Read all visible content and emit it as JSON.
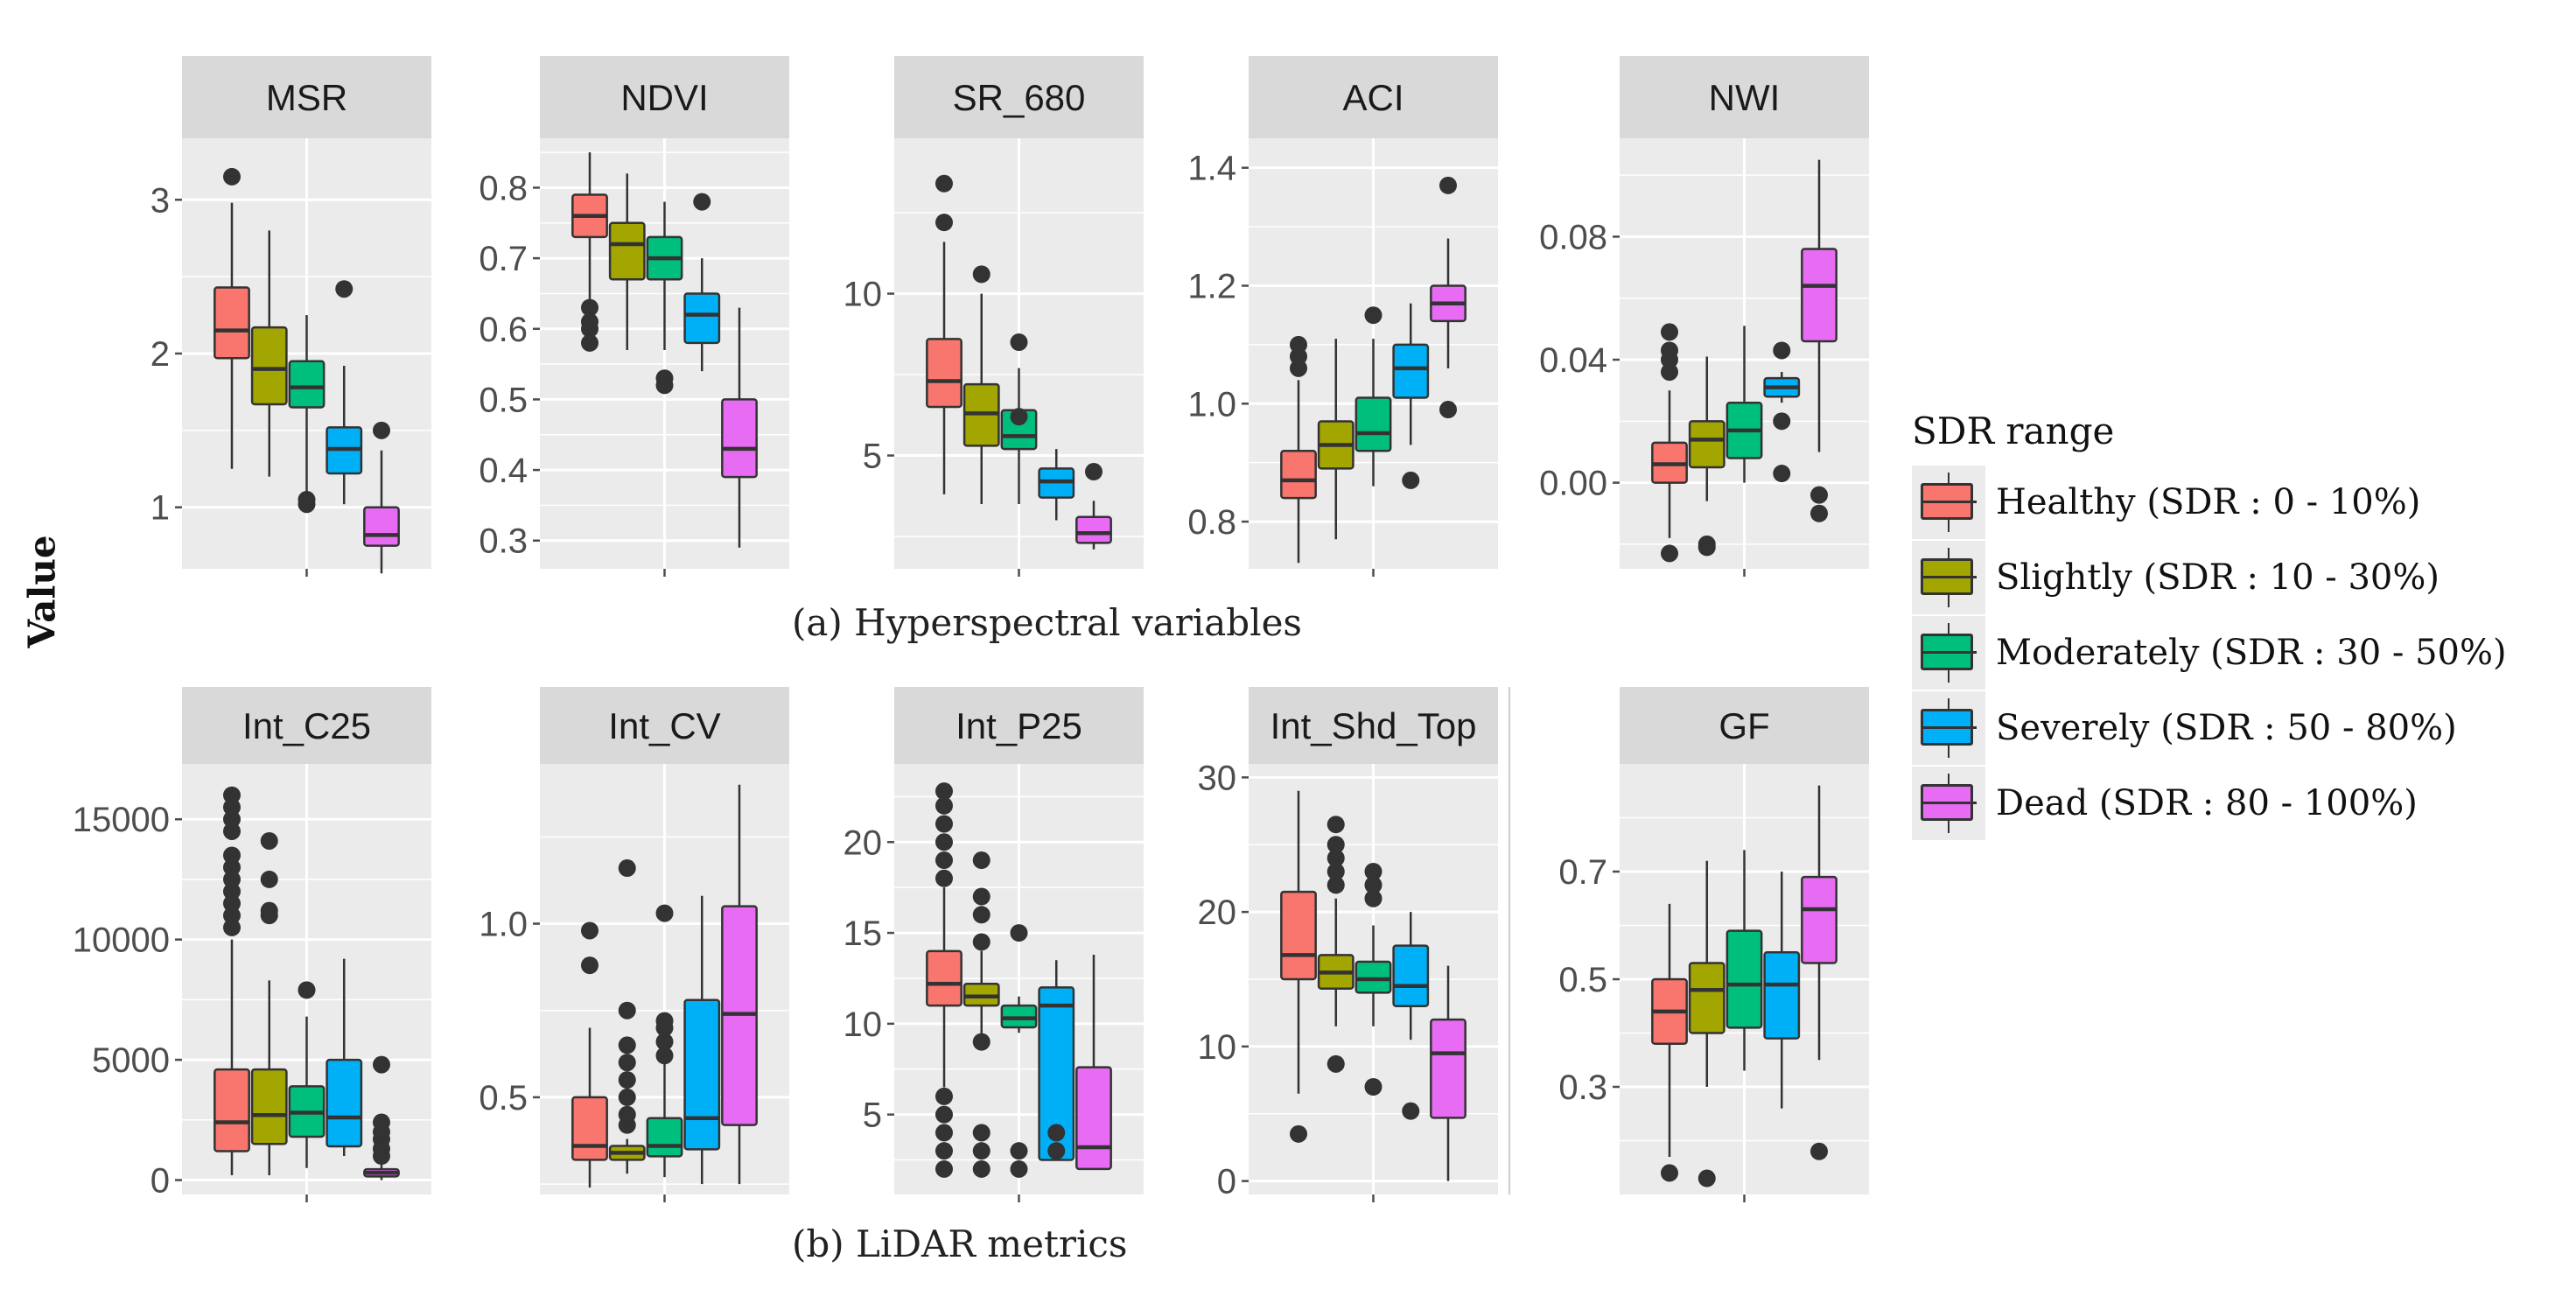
{
  "y_axis_label": "Value",
  "captions": {
    "hyperspectral": "(a) Hyperspectral variables",
    "lidar": "(b) LiDAR metrics"
  },
  "legend": {
    "title": "SDR range",
    "items": [
      {
        "label": "Healthy (SDR : 0 - 10%)",
        "color": "#F8766D"
      },
      {
        "label": "Slightly (SDR : 10 - 30%)",
        "color": "#A3A500"
      },
      {
        "label": "Moderately (SDR : 30 - 50%)",
        "color": "#00BF7D"
      },
      {
        "label": "Severely (SDR : 50 - 80%)",
        "color": "#00B0F6"
      },
      {
        "label": "Dead (SDR : 80 - 100%)",
        "color": "#E76BF3"
      }
    ]
  },
  "colors": {
    "panel_bg": "#EBEBEB",
    "strip_bg": "#D9D9D9",
    "grid": "#FFFFFF",
    "outline": "#333333",
    "tick_text": "#4D4D4D"
  },
  "chart_data": [
    {
      "type": "box",
      "title": "MSR",
      "ylim": [
        0.6,
        3.4
      ],
      "yticks": [
        1,
        2,
        3
      ],
      "tick_labels": [
        "1",
        "2",
        "3"
      ],
      "boxes": [
        {
          "group": "Healthy",
          "low": 1.25,
          "q1": 1.97,
          "median": 2.15,
          "q3": 2.43,
          "high": 2.98,
          "outliers": [
            3.15
          ]
        },
        {
          "group": "Slightly",
          "low": 1.2,
          "q1": 1.67,
          "median": 1.9,
          "q3": 2.17,
          "high": 2.8,
          "outliers": []
        },
        {
          "group": "Moderately",
          "low": 1.1,
          "q1": 1.65,
          "median": 1.78,
          "q3": 1.95,
          "high": 2.25,
          "outliers": [
            1.05,
            1.02
          ]
        },
        {
          "group": "Severely",
          "low": 1.02,
          "q1": 1.22,
          "median": 1.38,
          "q3": 1.52,
          "high": 1.92,
          "outliers": [
            2.42
          ]
        },
        {
          "group": "Dead",
          "low": 0.57,
          "q1": 0.75,
          "median": 0.82,
          "q3": 1.0,
          "high": 1.37,
          "outliers": [
            1.5
          ]
        }
      ]
    },
    {
      "type": "box",
      "title": "NDVI",
      "ylim": [
        0.26,
        0.87
      ],
      "yticks": [
        0.3,
        0.4,
        0.5,
        0.6,
        0.7,
        0.8
      ],
      "tick_labels": [
        "0.3",
        "0.4",
        "0.5",
        "0.6",
        "0.7",
        "0.8"
      ],
      "boxes": [
        {
          "group": "Healthy",
          "low": 0.64,
          "q1": 0.73,
          "median": 0.76,
          "q3": 0.79,
          "high": 0.85,
          "outliers": [
            0.63,
            0.61,
            0.6,
            0.58
          ]
        },
        {
          "group": "Slightly",
          "low": 0.57,
          "q1": 0.67,
          "median": 0.72,
          "q3": 0.75,
          "high": 0.82,
          "outliers": []
        },
        {
          "group": "Moderately",
          "low": 0.57,
          "q1": 0.67,
          "median": 0.7,
          "q3": 0.73,
          "high": 0.78,
          "outliers": [
            0.53,
            0.52
          ]
        },
        {
          "group": "Severely",
          "low": 0.54,
          "q1": 0.58,
          "median": 0.62,
          "q3": 0.65,
          "high": 0.7,
          "outliers": [
            0.78
          ]
        },
        {
          "group": "Dead",
          "low": 0.29,
          "q1": 0.39,
          "median": 0.43,
          "q3": 0.5,
          "high": 0.63,
          "outliers": []
        }
      ]
    },
    {
      "type": "box",
      "title": "SR_680",
      "ylim": [
        1.5,
        14.8
      ],
      "yticks": [
        5,
        10
      ],
      "tick_labels": [
        "5",
        "10"
      ],
      "boxes": [
        {
          "group": "Healthy",
          "low": 3.8,
          "q1": 6.5,
          "median": 7.3,
          "q3": 8.6,
          "high": 11.6,
          "outliers": [
            12.2,
            13.4
          ]
        },
        {
          "group": "Slightly",
          "low": 3.5,
          "q1": 5.3,
          "median": 6.3,
          "q3": 7.2,
          "high": 10.0,
          "outliers": [
            10.6
          ]
        },
        {
          "group": "Moderately",
          "low": 3.5,
          "q1": 5.2,
          "median": 5.6,
          "q3": 6.4,
          "high": 7.7,
          "outliers": [
            8.5,
            6.2
          ]
        },
        {
          "group": "Severely",
          "low": 3.0,
          "q1": 3.7,
          "median": 4.2,
          "q3": 4.6,
          "high": 5.2,
          "outliers": []
        },
        {
          "group": "Dead",
          "low": 2.1,
          "q1": 2.3,
          "median": 2.6,
          "q3": 3.1,
          "high": 3.6,
          "outliers": [
            4.5
          ]
        }
      ]
    },
    {
      "type": "box",
      "title": "ACI",
      "ylim": [
        0.72,
        1.45
      ],
      "yticks": [
        0.8,
        1.0,
        1.2,
        1.4
      ],
      "tick_labels": [
        "0.8",
        "1.0",
        "1.2",
        "1.4"
      ],
      "boxes": [
        {
          "group": "Healthy",
          "low": 0.73,
          "q1": 0.84,
          "median": 0.87,
          "q3": 0.92,
          "high": 1.04,
          "outliers": [
            1.06,
            1.08,
            1.1
          ]
        },
        {
          "group": "Slightly",
          "low": 0.77,
          "q1": 0.89,
          "median": 0.93,
          "q3": 0.97,
          "high": 1.11,
          "outliers": []
        },
        {
          "group": "Moderately",
          "low": 0.86,
          "q1": 0.92,
          "median": 0.95,
          "q3": 1.01,
          "high": 1.11,
          "outliers": [
            1.15
          ]
        },
        {
          "group": "Severely",
          "low": 0.93,
          "q1": 1.01,
          "median": 1.06,
          "q3": 1.1,
          "high": 1.17,
          "outliers": [
            0.87
          ]
        },
        {
          "group": "Dead",
          "low": 1.06,
          "q1": 1.14,
          "median": 1.17,
          "q3": 1.2,
          "high": 1.28,
          "outliers": [
            1.37,
            0.99
          ]
        }
      ]
    },
    {
      "type": "box",
      "title": "NWI",
      "ylim": [
        -0.028,
        0.112
      ],
      "yticks": [
        0.0,
        0.04,
        0.08
      ],
      "tick_labels": [
        "0.00",
        "0.04",
        "0.08"
      ],
      "boxes": [
        {
          "group": "Healthy",
          "low": -0.018,
          "q1": 0.0,
          "median": 0.006,
          "q3": 0.013,
          "high": 0.03,
          "outliers": [
            0.036,
            0.04,
            0.043,
            0.049,
            -0.023
          ]
        },
        {
          "group": "Slightly",
          "low": -0.006,
          "q1": 0.005,
          "median": 0.014,
          "q3": 0.02,
          "high": 0.041,
          "outliers": [
            -0.021,
            -0.02
          ]
        },
        {
          "group": "Moderately",
          "low": 0.0,
          "q1": 0.008,
          "median": 0.017,
          "q3": 0.026,
          "high": 0.051,
          "outliers": []
        },
        {
          "group": "Severely",
          "low": 0.026,
          "q1": 0.028,
          "median": 0.031,
          "q3": 0.034,
          "high": 0.036,
          "outliers": [
            0.043,
            0.02,
            0.003
          ]
        },
        {
          "group": "Dead",
          "low": 0.01,
          "q1": 0.046,
          "median": 0.064,
          "q3": 0.076,
          "high": 0.105,
          "outliers": [
            -0.004,
            -0.01
          ]
        }
      ]
    },
    {
      "type": "box",
      "title": "Int_C25",
      "ylim": [
        -600,
        17300
      ],
      "yticks": [
        0,
        5000,
        10000,
        15000
      ],
      "tick_labels": [
        "0",
        "5000",
        "10000",
        "15000"
      ],
      "boxes": [
        {
          "group": "Healthy",
          "low": 200,
          "q1": 1200,
          "median": 2400,
          "q3": 4600,
          "high": 10000,
          "outliers": [
            10500,
            11000,
            11500,
            12000,
            12500,
            13000,
            13500,
            14500,
            15000,
            15500,
            16000
          ]
        },
        {
          "group": "Slightly",
          "low": 200,
          "q1": 1500,
          "median": 2700,
          "q3": 4600,
          "high": 8300,
          "outliers": [
            11000,
            11200,
            12500,
            14100
          ]
        },
        {
          "group": "Moderately",
          "low": 500,
          "q1": 1800,
          "median": 2800,
          "q3": 3900,
          "high": 6800,
          "outliers": [
            7900
          ]
        },
        {
          "group": "Severely",
          "low": 1000,
          "q1": 1400,
          "median": 2600,
          "q3": 5000,
          "high": 9200,
          "outliers": []
        },
        {
          "group": "Dead",
          "low": 0,
          "q1": 150,
          "median": 300,
          "q3": 450,
          "high": 900,
          "outliers": [
            1000,
            1300,
            1700,
            2000,
            2400,
            4800
          ]
        }
      ]
    },
    {
      "type": "box",
      "title": "Int_CV",
      "ylim": [
        0.22,
        1.46
      ],
      "yticks": [
        0.5,
        1.0
      ],
      "tick_labels": [
        "0.5",
        "1.0"
      ],
      "boxes": [
        {
          "group": "Healthy",
          "low": 0.24,
          "q1": 0.32,
          "median": 0.36,
          "q3": 0.5,
          "high": 0.7,
          "outliers": [
            0.88,
            0.98
          ]
        },
        {
          "group": "Slightly",
          "low": 0.28,
          "q1": 0.32,
          "median": 0.34,
          "q3": 0.36,
          "high": 0.38,
          "outliers": [
            0.42,
            0.45,
            0.5,
            0.55,
            0.6,
            0.65,
            0.75,
            1.16
          ]
        },
        {
          "group": "Moderately",
          "low": 0.27,
          "q1": 0.33,
          "median": 0.36,
          "q3": 0.44,
          "high": 0.6,
          "outliers": [
            0.62,
            0.66,
            0.7,
            0.72,
            1.03
          ]
        },
        {
          "group": "Severely",
          "low": 0.25,
          "q1": 0.35,
          "median": 0.44,
          "q3": 0.78,
          "high": 1.08,
          "outliers": []
        },
        {
          "group": "Dead",
          "low": 0.25,
          "q1": 0.42,
          "median": 0.74,
          "q3": 1.05,
          "high": 1.4,
          "outliers": []
        }
      ]
    },
    {
      "type": "box",
      "title": "Int_P25",
      "ylim": [
        0.6,
        24.3
      ],
      "yticks": [
        5,
        10,
        15,
        20
      ],
      "tick_labels": [
        "5",
        "10",
        "15",
        "20"
      ],
      "boxes": [
        {
          "group": "Healthy",
          "low": 6.5,
          "q1": 11.0,
          "median": 12.2,
          "q3": 14.0,
          "high": 17.5,
          "outliers": [
            2,
            3,
            4,
            5,
            6,
            18,
            19,
            20,
            21,
            22,
            22.8
          ]
        },
        {
          "group": "Slightly",
          "low": 9.0,
          "q1": 11.0,
          "median": 11.5,
          "q3": 12.2,
          "high": 14.0,
          "outliers": [
            2,
            3,
            4,
            9,
            14.5,
            16,
            17,
            19
          ]
        },
        {
          "group": "Moderately",
          "low": 9.5,
          "q1": 9.8,
          "median": 10.3,
          "q3": 11.0,
          "high": 11.5,
          "outliers": [
            2,
            3,
            15
          ]
        },
        {
          "group": "Severely",
          "low": 2.5,
          "q1": 2.5,
          "median": 11.0,
          "q3": 12.0,
          "high": 13.5,
          "outliers": [
            3,
            4
          ]
        },
        {
          "group": "Dead",
          "low": 2.0,
          "q1": 2.0,
          "median": 3.2,
          "q3": 7.6,
          "high": 13.8,
          "outliers": []
        }
      ]
    },
    {
      "type": "box",
      "title": "Int_Shd_Top",
      "ylim": [
        -1,
        31
      ],
      "yticks": [
        0,
        10,
        20,
        30
      ],
      "tick_labels": [
        "0",
        "10",
        "20",
        "30"
      ],
      "boxes": [
        {
          "group": "Healthy",
          "low": 6.5,
          "q1": 15.0,
          "median": 16.8,
          "q3": 21.5,
          "high": 29.0,
          "outliers": [
            3.5
          ]
        },
        {
          "group": "Slightly",
          "low": 11.5,
          "q1": 14.3,
          "median": 15.5,
          "q3": 16.8,
          "high": 21.0,
          "outliers": [
            8.7,
            22,
            23,
            24,
            25,
            26.5
          ]
        },
        {
          "group": "Moderately",
          "low": 11.5,
          "q1": 14.0,
          "median": 15.0,
          "q3": 16.3,
          "high": 19.0,
          "outliers": [
            7.0,
            21,
            22,
            23
          ]
        },
        {
          "group": "Severely",
          "low": 10.5,
          "q1": 13.0,
          "median": 14.5,
          "q3": 17.5,
          "high": 20.0,
          "outliers": [
            5.2
          ]
        },
        {
          "group": "Dead",
          "low": 0,
          "q1": 4.7,
          "median": 9.5,
          "q3": 12.0,
          "high": 16.0,
          "outliers": []
        }
      ]
    },
    {
      "type": "box",
      "title": "GF",
      "ylim": [
        0.1,
        0.9
      ],
      "yticks": [
        0.3,
        0.5,
        0.7
      ],
      "tick_labels": [
        "0.3",
        "0.5",
        "0.7"
      ],
      "boxes": [
        {
          "group": "Healthy",
          "low": 0.17,
          "q1": 0.38,
          "median": 0.44,
          "q3": 0.5,
          "high": 0.64,
          "outliers": [
            0.14
          ]
        },
        {
          "group": "Slightly",
          "low": 0.3,
          "q1": 0.4,
          "median": 0.48,
          "q3": 0.53,
          "high": 0.72,
          "outliers": [
            0.13
          ]
        },
        {
          "group": "Moderately",
          "low": 0.33,
          "q1": 0.41,
          "median": 0.49,
          "q3": 0.59,
          "high": 0.74,
          "outliers": []
        },
        {
          "group": "Severely",
          "low": 0.26,
          "q1": 0.39,
          "median": 0.49,
          "q3": 0.55,
          "high": 0.7,
          "outliers": []
        },
        {
          "group": "Dead",
          "low": 0.35,
          "q1": 0.53,
          "median": 0.63,
          "q3": 0.69,
          "high": 0.86,
          "outliers": [
            0.18
          ]
        }
      ]
    }
  ]
}
